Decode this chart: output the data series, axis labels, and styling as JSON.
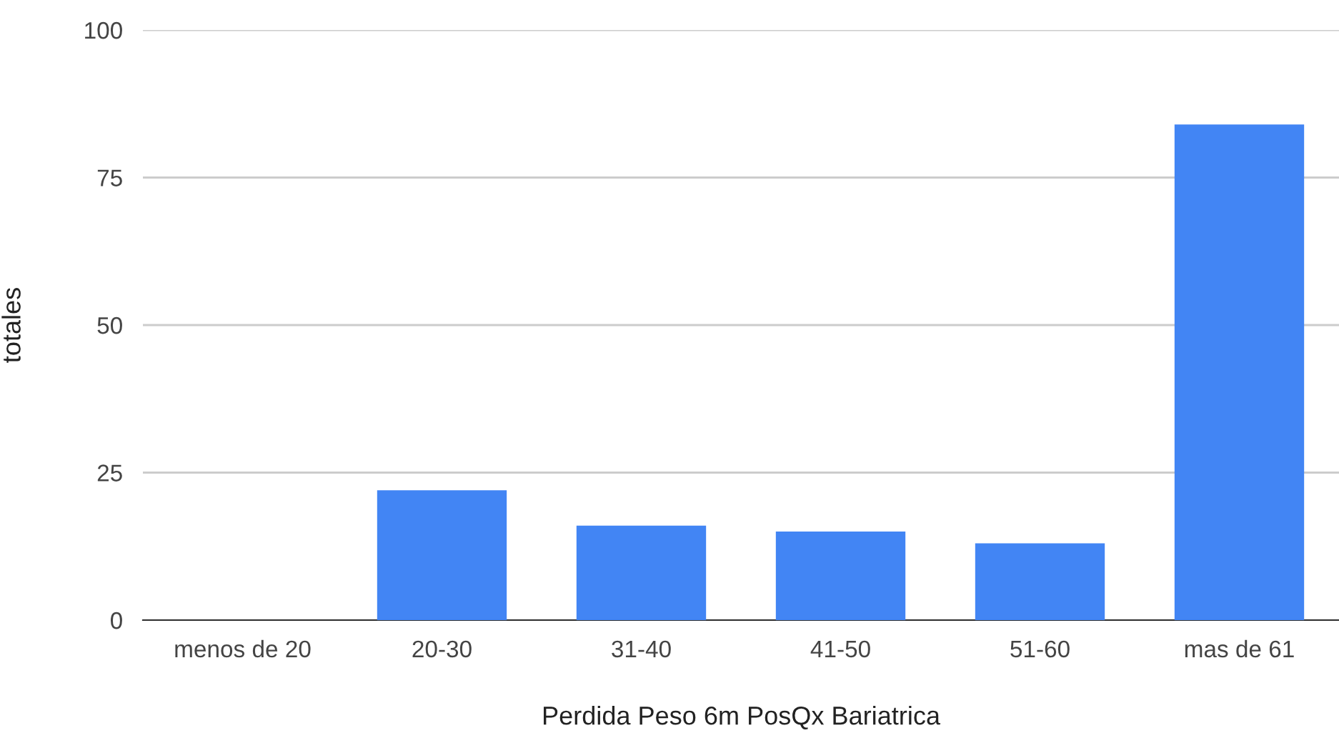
{
  "chart_data": {
    "type": "bar",
    "xlabel": "Perdida Peso 6m PosQx Bariatrica",
    "ylabel": "totales",
    "categories": [
      "menos de 20",
      "20-30",
      "31-40",
      "41-50",
      "51-60",
      "mas de 61"
    ],
    "values": [
      0,
      22,
      16,
      15,
      13,
      84
    ],
    "color": "#4285f4",
    "ylim": [
      0,
      100
    ],
    "yticks": [
      0,
      25,
      50,
      75,
      100
    ],
    "grid": "y",
    "legend": false
  }
}
